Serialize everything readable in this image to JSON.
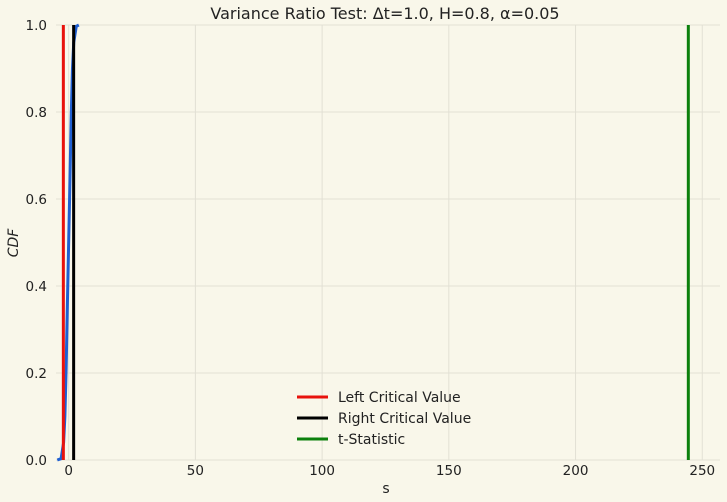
{
  "chart_data": {
    "type": "line",
    "title": "Variance Ratio Test: Δt=1.0, H=0.8, α=0.05",
    "xlabel": "s",
    "ylabel": "CDF",
    "xlim": [
      -5,
      257
    ],
    "ylim": [
      0.0,
      1.0
    ],
    "xticks": [
      0,
      50,
      100,
      150,
      200,
      250
    ],
    "yticks": [
      0.0,
      0.2,
      0.4,
      0.6,
      0.8,
      1.0
    ],
    "grid": true,
    "legend_position": "bottom-center",
    "series": [
      {
        "color": "#1f5fd1",
        "x": [
          -4.5,
          -3,
          -2,
          -1.5,
          -1,
          -0.5,
          0,
          0.5,
          1,
          1.5,
          2,
          3,
          4
        ],
        "y": [
          0.0,
          0.003,
          0.04,
          0.1,
          0.21,
          0.36,
          0.5,
          0.64,
          0.79,
          0.9,
          0.96,
          0.997,
          1.0
        ]
      }
    ],
    "vertical_lines": [
      {
        "name": "Left Critical Value",
        "x": -2.1,
        "color": "#e8120c"
      },
      {
        "name": "Right Critical Value",
        "x": 1.96,
        "color": "#000000"
      },
      {
        "name": "t-Statistic",
        "x": 244.5,
        "color": "#0c800c"
      }
    ]
  }
}
